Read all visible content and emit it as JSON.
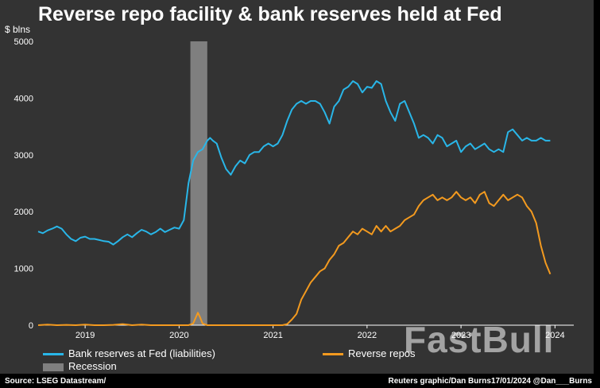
{
  "chart_data": {
    "type": "line",
    "title": "Reverse repo facility & bank reserves held at Fed",
    "ylabel": "$ blns",
    "ylim": [
      0,
      5000
    ],
    "yticks": [
      "0",
      "1000",
      "2000",
      "3000",
      "4000",
      "5000"
    ],
    "xticks": [
      {
        "label": "2019",
        "x": 2019.0
      },
      {
        "label": "2020",
        "x": 2020.0
      },
      {
        "label": "2021",
        "x": 2021.0
      },
      {
        "label": "2022",
        "x": 2022.0
      },
      {
        "label": "2023",
        "x": 2023.0
      },
      {
        "label": "2024",
        "x": 2024.0
      }
    ],
    "xlim": [
      2018.5,
      2024.2
    ],
    "recession": {
      "label": "Recession",
      "start": 2020.12,
      "end": 2020.3,
      "color": "#7f7f7f"
    },
    "series": [
      {
        "name": "Bank reserves at Fed (liabilities)",
        "color": "#29b6e8",
        "x": [
          2018.5,
          2018.55,
          2018.6,
          2018.65,
          2018.7,
          2018.75,
          2018.8,
          2018.85,
          2018.9,
          2018.95,
          2019.0,
          2019.05,
          2019.1,
          2019.15,
          2019.2,
          2019.25,
          2019.3,
          2019.35,
          2019.4,
          2019.45,
          2019.5,
          2019.55,
          2019.6,
          2019.65,
          2019.7,
          2019.75,
          2019.8,
          2019.85,
          2019.9,
          2019.95,
          2020.0,
          2020.05,
          2020.1,
          2020.15,
          2020.2,
          2020.25,
          2020.3,
          2020.33,
          2020.36,
          2020.4,
          2020.45,
          2020.5,
          2020.55,
          2020.6,
          2020.65,
          2020.7,
          2020.75,
          2020.8,
          2020.85,
          2020.9,
          2020.95,
          2021.0,
          2021.05,
          2021.1,
          2021.15,
          2021.2,
          2021.25,
          2021.3,
          2021.35,
          2021.4,
          2021.45,
          2021.5,
          2021.55,
          2021.6,
          2021.65,
          2021.7,
          2021.75,
          2021.8,
          2021.85,
          2021.9,
          2021.95,
          2022.0,
          2022.05,
          2022.1,
          2022.15,
          2022.2,
          2022.25,
          2022.3,
          2022.35,
          2022.4,
          2022.45,
          2022.5,
          2022.55,
          2022.6,
          2022.65,
          2022.7,
          2022.75,
          2022.8,
          2022.85,
          2022.9,
          2022.95,
          2023.0,
          2023.05,
          2023.1,
          2023.15,
          2023.2,
          2023.25,
          2023.3,
          2023.35,
          2023.4,
          2023.45,
          2023.5,
          2023.55,
          2023.6,
          2023.65,
          2023.7,
          2023.75,
          2023.8,
          2023.85,
          2023.9,
          2023.95
        ],
        "y": [
          1650,
          1620,
          1670,
          1700,
          1740,
          1700,
          1600,
          1520,
          1480,
          1540,
          1560,
          1520,
          1520,
          1500,
          1480,
          1470,
          1420,
          1480,
          1550,
          1600,
          1550,
          1620,
          1680,
          1650,
          1600,
          1640,
          1700,
          1640,
          1680,
          1720,
          1700,
          1850,
          2500,
          2900,
          3050,
          3100,
          3250,
          3300,
          3250,
          3200,
          2950,
          2750,
          2650,
          2800,
          2900,
          2850,
          3000,
          3050,
          3050,
          3150,
          3200,
          3150,
          3200,
          3350,
          3600,
          3800,
          3900,
          3950,
          3900,
          3950,
          3950,
          3900,
          3750,
          3550,
          3850,
          3950,
          4150,
          4200,
          4300,
          4250,
          4100,
          4200,
          4180,
          4300,
          4250,
          3950,
          3750,
          3600,
          3900,
          3950,
          3750,
          3550,
          3300,
          3350,
          3300,
          3200,
          3350,
          3300,
          3150,
          3200,
          3250,
          3050,
          3150,
          3200,
          3100,
          3150,
          3200,
          3100,
          3050,
          3100,
          3050,
          3400,
          3450,
          3350,
          3250,
          3300,
          3250,
          3250,
          3300,
          3250,
          3250
        ]
      },
      {
        "name": "Reverse repos",
        "color": "#f39a1f",
        "x": [
          2018.5,
          2018.6,
          2018.7,
          2018.8,
          2018.9,
          2019.0,
          2019.1,
          2019.2,
          2019.3,
          2019.4,
          2019.5,
          2019.6,
          2019.7,
          2019.8,
          2019.9,
          2020.0,
          2020.1,
          2020.15,
          2020.2,
          2020.22,
          2020.25,
          2020.3,
          2020.4,
          2020.5,
          2020.6,
          2020.7,
          2020.8,
          2020.9,
          2021.0,
          2021.05,
          2021.1,
          2021.15,
          2021.2,
          2021.25,
          2021.3,
          2021.35,
          2021.4,
          2021.45,
          2021.5,
          2021.55,
          2021.6,
          2021.65,
          2021.7,
          2021.75,
          2021.8,
          2021.85,
          2021.9,
          2021.95,
          2022.0,
          2022.05,
          2022.1,
          2022.15,
          2022.2,
          2022.25,
          2022.3,
          2022.35,
          2022.4,
          2022.45,
          2022.5,
          2022.55,
          2022.6,
          2022.65,
          2022.7,
          2022.75,
          2022.8,
          2022.85,
          2022.9,
          2022.95,
          2023.0,
          2023.05,
          2023.1,
          2023.15,
          2023.2,
          2023.25,
          2023.3,
          2023.35,
          2023.4,
          2023.45,
          2023.5,
          2023.55,
          2023.6,
          2023.65,
          2023.7,
          2023.75,
          2023.8,
          2023.85,
          2023.9,
          2023.95
        ],
        "y": [
          0,
          10,
          0,
          5,
          0,
          10,
          0,
          0,
          5,
          20,
          0,
          10,
          0,
          0,
          0,
          0,
          0,
          30,
          220,
          150,
          30,
          0,
          0,
          0,
          0,
          0,
          0,
          0,
          0,
          0,
          0,
          20,
          100,
          200,
          450,
          600,
          750,
          850,
          950,
          1000,
          1150,
          1250,
          1400,
          1450,
          1550,
          1650,
          1600,
          1700,
          1650,
          1600,
          1750,
          1650,
          1750,
          1650,
          1700,
          1750,
          1850,
          1900,
          1950,
          2100,
          2200,
          2250,
          2300,
          2200,
          2250,
          2200,
          2250,
          2350,
          2250,
          2200,
          2250,
          2150,
          2300,
          2350,
          2150,
          2100,
          2200,
          2300,
          2200,
          2250,
          2300,
          2250,
          2100,
          2000,
          1800,
          1400,
          1100,
          900
        ]
      }
    ],
    "legend": {
      "placement": "bottom"
    }
  },
  "legend_labels": {
    "reserves": "Bank reserves at Fed (liabilities)",
    "repos": "Reverse repos",
    "recession": "Recession"
  },
  "footer": {
    "source": "Source: LSEG Datastream/",
    "credit": "Reuters graphic/Dan Burns17/01/2024 @Dan___Burns"
  },
  "watermark": "FastBull"
}
